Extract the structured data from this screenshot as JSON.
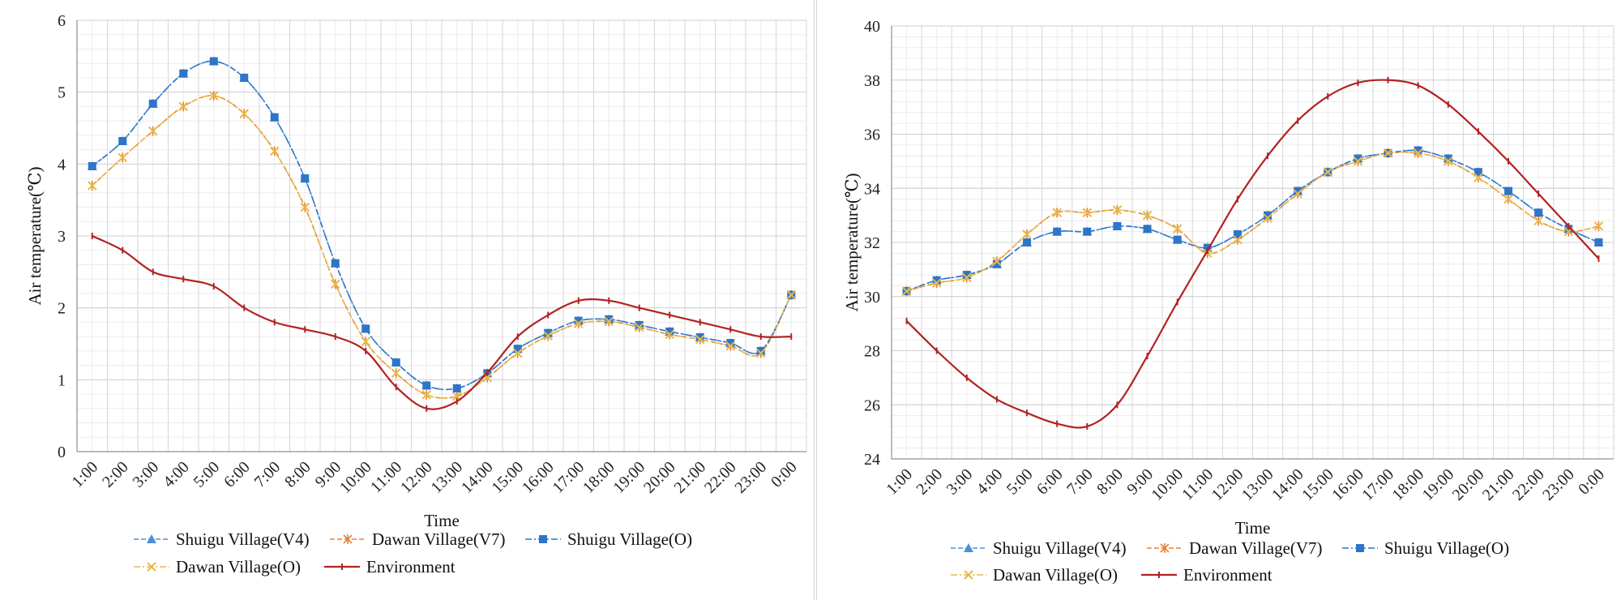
{
  "chart_data": [
    {
      "type": "line",
      "title": "",
      "xlabel": "Time",
      "ylabel": "Air temperature(℃)",
      "ylim": [
        0,
        6
      ],
      "yticks": [
        0,
        1,
        2,
        3,
        4,
        5,
        6
      ],
      "grid": true,
      "legend": "bottom",
      "categories": [
        "1:00",
        "2:00",
        "3:00",
        "4:00",
        "5:00",
        "6:00",
        "7:00",
        "8:00",
        "9:00",
        "10:00",
        "11:00",
        "12:00",
        "13:00",
        "14:00",
        "15:00",
        "16:00",
        "17:00",
        "18:00",
        "19:00",
        "20:00",
        "21:00",
        "22:00",
        "23:00",
        "0:00"
      ],
      "series": [
        {
          "name": "Shuigu Village(V4)",
          "color": "#4A90D9",
          "marker": "triangle",
          "dash": "6,3",
          "values": [
            3.97,
            4.32,
            4.84,
            5.26,
            5.43,
            5.2,
            4.65,
            3.8,
            2.62,
            1.71,
            1.24,
            0.92,
            0.88,
            1.09,
            1.43,
            1.65,
            1.82,
            1.84,
            1.76,
            1.67,
            1.59,
            1.51,
            1.4,
            2.18
          ]
        },
        {
          "name": "Dawan Village(V7)",
          "color": "#E6803A",
          "marker": "star",
          "dash": "6,3",
          "values": [
            3.7,
            4.09,
            4.46,
            4.8,
            4.95,
            4.7,
            4.18,
            3.4,
            2.33,
            1.53,
            1.09,
            0.79,
            0.77,
            1.03,
            1.37,
            1.61,
            1.78,
            1.81,
            1.73,
            1.63,
            1.56,
            1.47,
            1.37,
            2.18
          ]
        },
        {
          "name": "Shuigu Village(O)",
          "color": "#2E75C8",
          "marker": "square",
          "dash": "8,3,2,3",
          "values": [
            3.97,
            4.32,
            4.84,
            5.26,
            5.43,
            5.2,
            4.65,
            3.8,
            2.62,
            1.71,
            1.24,
            0.92,
            0.88,
            1.09,
            1.43,
            1.65,
            1.82,
            1.84,
            1.76,
            1.67,
            1.59,
            1.51,
            1.4,
            2.18
          ]
        },
        {
          "name": "Dawan Village(O)",
          "color": "#E8B84A",
          "marker": "x",
          "dash": "8,3,2,3",
          "values": [
            3.7,
            4.09,
            4.46,
            4.8,
            4.95,
            4.7,
            4.18,
            3.4,
            2.33,
            1.53,
            1.09,
            0.79,
            0.77,
            1.03,
            1.37,
            1.61,
            1.78,
            1.81,
            1.73,
            1.63,
            1.56,
            1.47,
            1.37,
            2.18
          ]
        },
        {
          "name": "Environment",
          "color": "#B22222",
          "marker": "dash",
          "dash": "",
          "values": [
            3.0,
            2.8,
            2.5,
            2.4,
            2.3,
            2.0,
            1.8,
            1.7,
            1.6,
            1.4,
            0.9,
            0.6,
            0.7,
            1.1,
            1.6,
            1.9,
            2.1,
            2.1,
            2.0,
            1.9,
            1.8,
            1.7,
            1.6,
            1.6
          ]
        }
      ]
    },
    {
      "type": "line",
      "title": "",
      "xlabel": "Time",
      "ylabel": "Air temperature(℃)",
      "ylim": [
        24,
        40
      ],
      "yticks": [
        24,
        26,
        28,
        30,
        32,
        34,
        36,
        38,
        40
      ],
      "grid": true,
      "legend": "bottom",
      "categories": [
        "1:00",
        "2:00",
        "3:00",
        "4:00",
        "5:00",
        "6:00",
        "7:00",
        "8:00",
        "9:00",
        "10:00",
        "11:00",
        "12:00",
        "13:00",
        "14:00",
        "15:00",
        "16:00",
        "17:00",
        "18:00",
        "19:00",
        "20:00",
        "21:00",
        "22:00",
        "23:00",
        "0:00"
      ],
      "series": [
        {
          "name": "Shuigu Village(V4)",
          "color": "#4A90D9",
          "marker": "triangle",
          "dash": "6,3",
          "values": [
            30.2,
            30.6,
            30.8,
            31.2,
            32.0,
            32.4,
            32.4,
            32.6,
            32.5,
            32.1,
            31.8,
            32.3,
            33.0,
            33.9,
            34.6,
            35.1,
            35.3,
            35.4,
            35.1,
            34.6,
            33.9,
            33.1,
            32.5,
            32.0
          ]
        },
        {
          "name": "Dawan Village(V7)",
          "color": "#E6803A",
          "marker": "star",
          "dash": "6,3",
          "values": [
            30.2,
            30.5,
            30.7,
            31.3,
            32.3,
            33.1,
            33.1,
            33.2,
            33.0,
            32.5,
            31.6,
            32.1,
            32.9,
            33.8,
            34.6,
            35.0,
            35.3,
            35.3,
            35.0,
            34.4,
            33.6,
            32.8,
            32.4,
            32.6
          ]
        },
        {
          "name": "Shuigu Village(O)",
          "color": "#2E75C8",
          "marker": "square",
          "dash": "8,3,2,3",
          "values": [
            30.2,
            30.6,
            30.8,
            31.2,
            32.0,
            32.4,
            32.4,
            32.6,
            32.5,
            32.1,
            31.8,
            32.3,
            33.0,
            33.9,
            34.6,
            35.1,
            35.3,
            35.4,
            35.1,
            34.6,
            33.9,
            33.1,
            32.5,
            32.0
          ]
        },
        {
          "name": "Dawan Village(O)",
          "color": "#E8B84A",
          "marker": "x",
          "dash": "8,3,2,3",
          "values": [
            30.2,
            30.5,
            30.7,
            31.3,
            32.3,
            33.1,
            33.1,
            33.2,
            33.0,
            32.5,
            31.6,
            32.1,
            32.9,
            33.8,
            34.6,
            35.0,
            35.3,
            35.3,
            35.0,
            34.4,
            33.6,
            32.8,
            32.4,
            32.6
          ]
        },
        {
          "name": "Environment",
          "color": "#B22222",
          "marker": "dash",
          "dash": "",
          "values": [
            29.1,
            28.0,
            27.0,
            26.2,
            25.7,
            25.3,
            25.2,
            26.0,
            27.8,
            29.8,
            31.7,
            33.6,
            35.2,
            36.5,
            37.4,
            37.9,
            38.0,
            37.8,
            37.1,
            36.1,
            35.0,
            33.8,
            32.6,
            31.4
          ]
        }
      ]
    }
  ]
}
